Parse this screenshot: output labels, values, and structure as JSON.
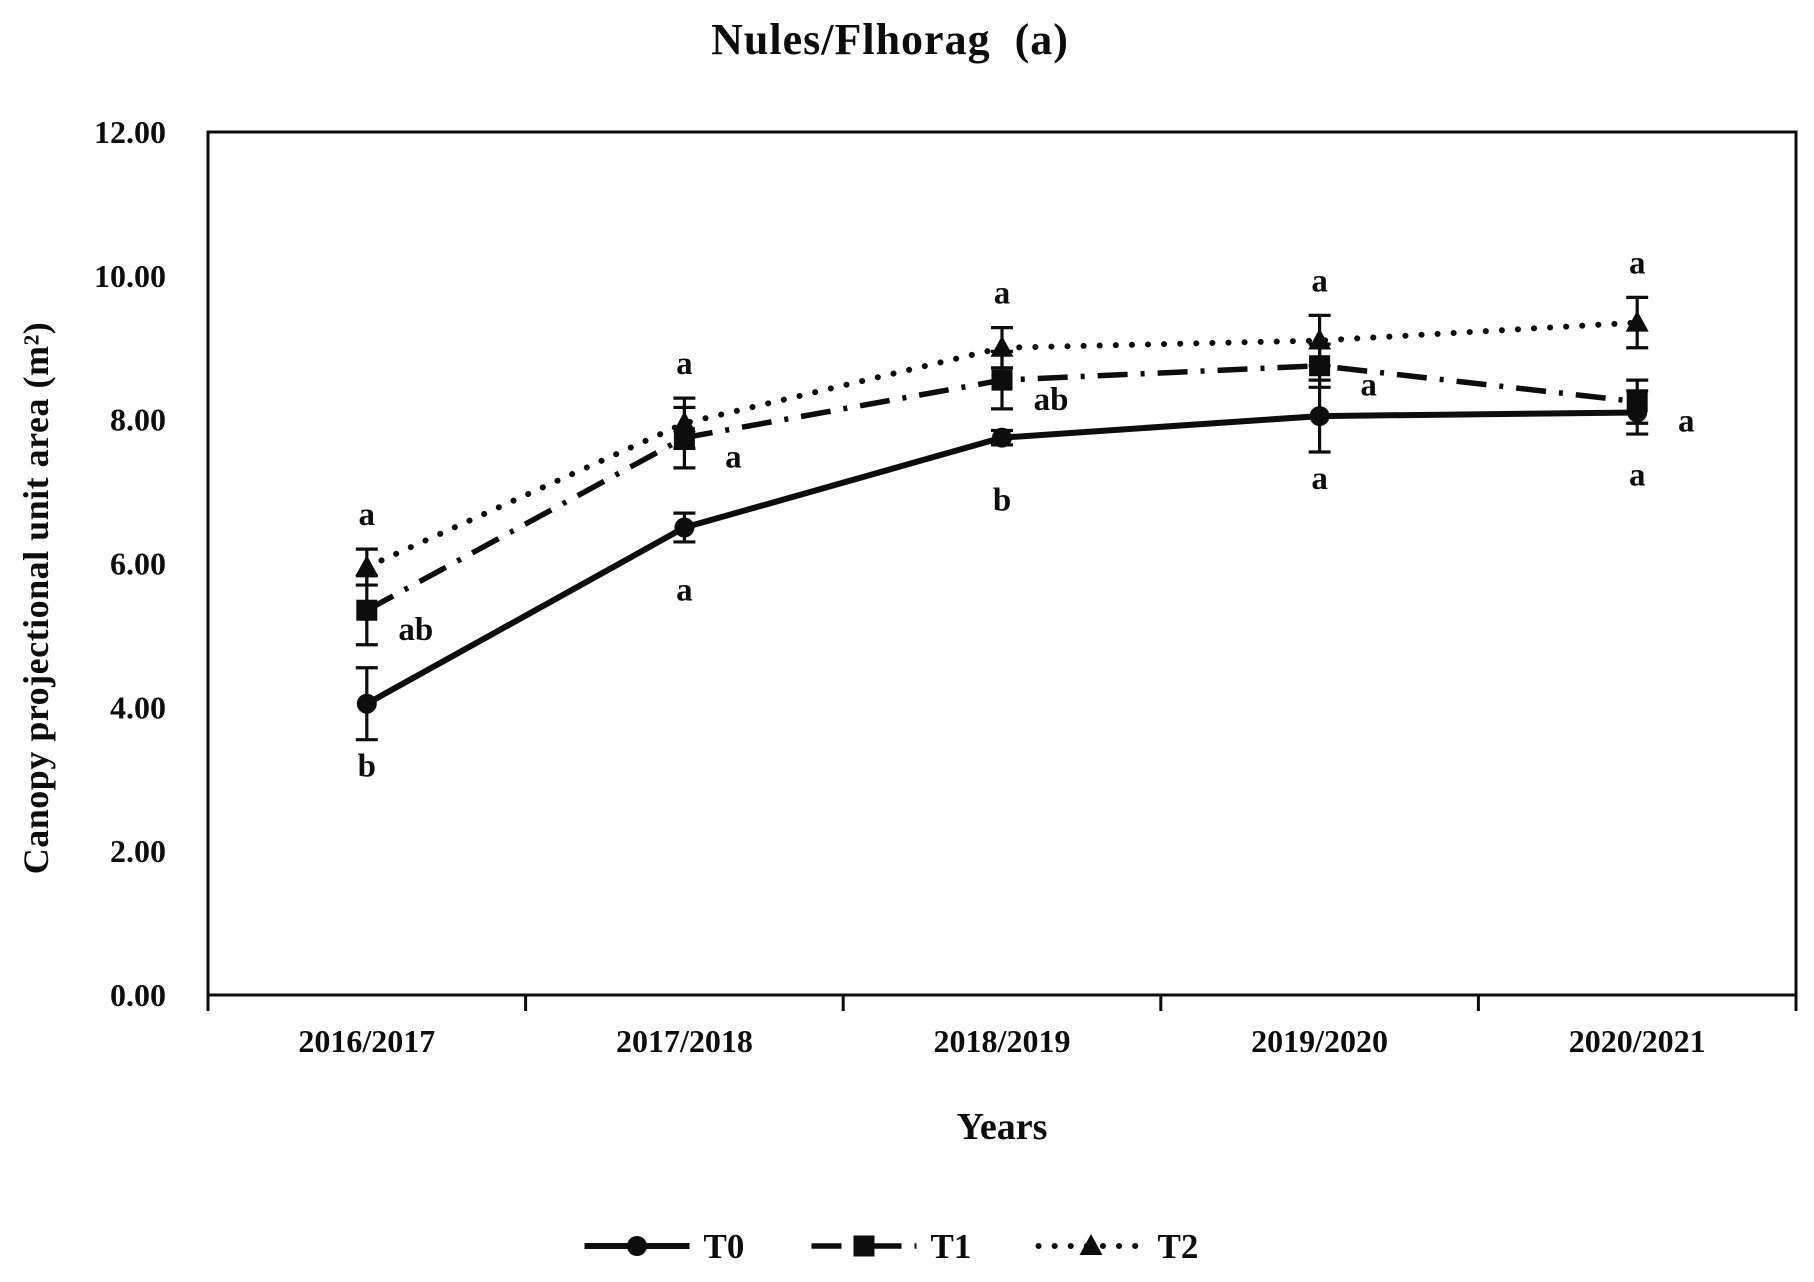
{
  "chart_data": {
    "type": "line",
    "title": "Nules/Flhorag  (a)",
    "xlabel": "Years",
    "ylabel": "Canopy projectional unit area (m²)",
    "categories": [
      "2016/2017",
      "2017/2018",
      "2018/2019",
      "2019/2020",
      "2020/2021"
    ],
    "ylim": [
      0,
      12
    ],
    "ytick_step": 2,
    "ytick_labels": [
      "0.00",
      "2.00",
      "4.00",
      "6.00",
      "8.00",
      "10.00",
      "12.00"
    ],
    "grid": false,
    "legend_position": "bottom-center",
    "foreground_color": "#0d0d0d",
    "background_color": "#ffffff",
    "series": [
      {
        "name": "T0",
        "marker": "circle",
        "line_style": "solid",
        "label_placement": "below",
        "values": [
          4.05,
          6.5,
          7.75,
          8.05,
          8.1
        ],
        "errors": [
          0.5,
          0.2,
          0.1,
          0.5,
          0.3
        ],
        "point_labels": [
          "b",
          "a",
          "b",
          "a",
          "a"
        ]
      },
      {
        "name": "T1",
        "marker": "square",
        "line_style": "dash-dot",
        "label_placement": "right",
        "values": [
          5.35,
          7.75,
          8.55,
          8.75,
          8.25
        ],
        "errors": [
          0.48,
          0.42,
          0.4,
          0.3,
          0.3
        ],
        "point_labels": [
          "ab",
          "a",
          "ab",
          "a",
          "a"
        ]
      },
      {
        "name": "T2",
        "marker": "triangle",
        "line_style": "dotted",
        "label_placement": "above",
        "values": [
          5.95,
          7.95,
          9.0,
          9.1,
          9.35
        ],
        "errors": [
          0.25,
          0.35,
          0.28,
          0.35,
          0.35
        ],
        "point_labels": [
          "a",
          "a",
          "a",
          "a",
          "a"
        ]
      }
    ]
  }
}
